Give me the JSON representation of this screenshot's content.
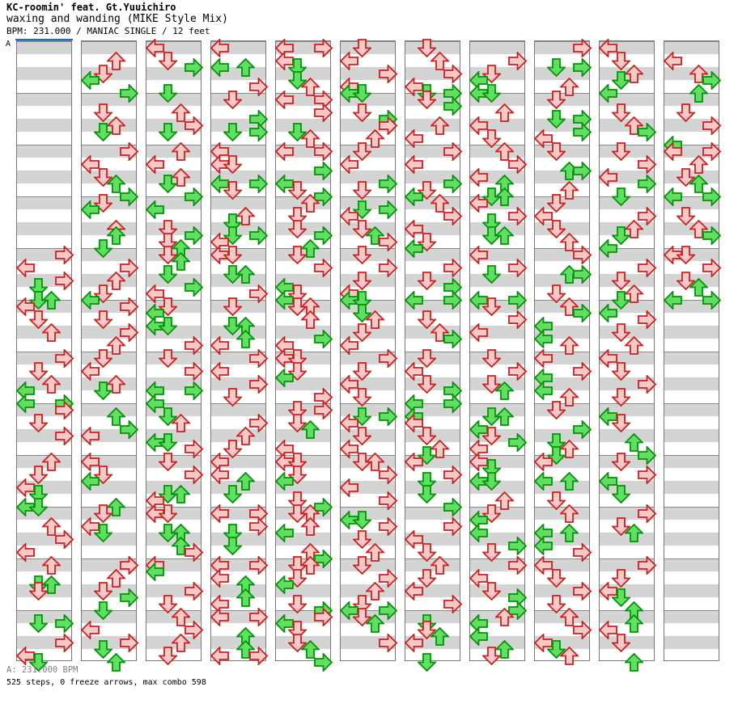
{
  "header": {
    "title": "KC-roomin' feat. Gt.Yuuichiro",
    "subtitle": "waxing and wanding (MIKE Style Mix)",
    "info_line": "BPM: 231.000 / MANIAC SINGLE / 12 feet"
  },
  "bpm_marker": {
    "label": "A"
  },
  "footer": {
    "bpm_line": "A: 231.000 BPM",
    "stats_line": "525 steps, 0 freeze arrows, max combo 598"
  },
  "colors": {
    "stripe_gray": "#d4d4d4",
    "stripe_white": "#ffffff",
    "column_border": "#787878",
    "measure_line": "#8a8a8a",
    "bpm_marker_blue": "#1a6fd2",
    "note_pink_fill": "#f9c8c8",
    "note_pink_stroke": "#cc2020",
    "note_green_fill": "#63dd63",
    "note_green_stroke": "#009408",
    "footer_bpm_text": "#808080",
    "text_black": "#000000"
  },
  "stepchart": {
    "lanes": [
      "left",
      "down",
      "up",
      "right"
    ],
    "note_types": {
      "p": "quarter-note-pink",
      "g": "eighth-note-green"
    },
    "columns_count": 11,
    "measures_per_column": 12,
    "beats_per_measure": 4,
    "columns": [
      "32Rp 34Lp 36Rp 37Dg 39Dg 39Ug 40Lp 42Dp 44Up 48Rp 50Dp 52Up 53Lg 55Lg 55Rg 56Rp 58Dp 60Rp 64Up 66Dp 68Lp 69Dg 71Lg 71Dg 74Up 76Rp 78Lp 80Up 83Dg 83Ug 84Dp 89Dg 89Rg 92Rp 94Lp 95Dg",
      "2Up 4Dp 5Lg 7Rg 10Dp 12Up 13Dg 16Rp 18Lp 20Dp 21Ug 23Rg 24Dp 25Lg 28Up 29Ug 31Dg 34Rp 36Up 38Dp 39Lg 40Rp 42Dp 44Rp 46Up 48Dp 50Lp 52Up 53Dg 57Ug 59Rg 60Lp 64Lp 66Dp 67Lg 71Ug 72Dp 74Lp 75Dg 80Rp 82Up 84Dp 85Rg 87Dg 90Lp 92Rp 93Dg 95Ug",
      "0Lp 2Dp 3Rg 7Dg 10Up 12Rp 13Dg 16Up 18Lp 20Up 21Dg 23Rg 25Lg 28Dp 29Rg 30Dp 31Ug 32Dp 33Ug 35Dg 37Rg 38Lp 40Dp 41Lg 43Lg 43Dg 46Rp 48Dp 50Rp 53Lg 53Rg 55Lg 57Dg 58Up 61Lg 61Dg 62Rp 64Dp 66Rp 69Dg 69Ug 70Lp 72Lp 72Dp 75Dg 75Ug 77Ug 78Rp 80Lp 81Lg 84Rp 86Dp 88Up 90Rp 92Up 94Dp",
      "0Lp 3Lg 3Ug 6Rp 8Dp 11Rg 13Dg 13Rg 16Lp 18Lp 18Dp 21Lg 21Rg 22Dp 26Up 27Dg 29Dg 29Rg 30Lp 32Lp 32Dp 35Dg 35Ug 38Rp 40Dp 43Dg 43Ug 45Ug 46Lp 48Rp 50Lp 52Rp 54Dp 58Rp 60Up 62Dp 64Lp 66Lp 67Ug 69Dg 72Lp 72Rp 74Rp 75Dg 77Dg 80Lp 80Rp 82Lp 83Ug 85Ug 86Lp 88Lp 88Rp 91Ug 93Ug 94Lp 94Rp",
      "0Lp 0Rp 2Lp 3Dg 5Dg 6Up 8Lp 8Rp 10Rp 13Dg 14Up 16Lp 16Rp 19Rg 21Lg 22Dp 23Rg 24Up 26Dp 28Dp 29Rg 31Ug 32Dp 34Rp 37Lg 38Dp 39Lg 40Dp 40Up 42Up 45Rg 46Lp 48Lp 48Dp 50Dp 51Lg 54Rp 56Dp 56Rp 58Dp 59Ug 62Lp 64Lp 64Dp 66Dp 67Lg 70Dp 71Rg 72Dp 72Up 74Up 75Lg 78Up 79Rg 80Dp 80Up 82Dp 83Lg 86Dp 87Rg 88Rp 89Lg 90Dp 92Dp 93Ug 95Rg",
      "0Dp 2Lp 4Rp 6Lp 7Lg 7Dg 10Dp 11Rg 12Rp 14Up 16Dp 18Lp 21Rg 22Dp 25Dg 25Rg 26Lp 28Dp 29Ug 30Rp 32Dp 34Rp 36Dp 38Lp 39Lg 39Dg 41Dg 42Up 44Dp 46Lp 48Rp 50Dp 52Lp 54Dp 57Dg 57Rg 58Lp 60Dp 62Lp 64Dp 64Up 66Rp 68Lp 70Rp 73Lg 73Dg 74Rp 76Dp 78Up 80Dp 82Rp 84Up 86Dp 87Lg 87Rg 88Dp 89Ug 92Rp",
      "0Dp 2Up 4Rp 6Lp 7Dg 7Rg 8Dp 9Rg 12Up 14Lp 16Rp 18Lp 21Rg 22Dp 23Lg 24Up 26Rp 28Lp 30Dp 31Lg 34Rp 36Dp 37Rg 39Lg 39Rg 42Dp 44Up 45Rg 48Dp 50Lp 52Dp 53Rg 55Lg 55Rg 57Lg 58Lp 60Dp 62Up 63Dg 64Lp 66Rp 67Dg 69Dg 71Rg 74Rp 76Lp 78Dp 80Up 82Dp 84Lp 86Rp 89Dg 90Dp 91Ug 92Lp 95Dg",
      "2Rp 4Dp 5Lg 7Lg 7Dg 10Up 12Lp 14Dp 16Up 18Rp 20Lp 21Ug 23Dg 23Ug 24Lp 26Rp 27Dg 29Dg 29Ug 32Lp 34Rp 35Dg 39Lg 39Rg 40Dp 42Rp 44Lp 48Dp 50Rp 52Dp 53Ug 57Ug 57Dg 59Lg 60Dp 61Rg 62Lp 64Lp 65Dg 67Lg 67Dg 70Up 72Dp 73Lg 75Lg 77Rg 78Dp 80Rp 82Lp 84Dp 85Rg 87Rg 88Up 89Lg 91Lg 93Ug 94Dp",
      "0Rp 3Dg 3Rg 6Up 8Dp 11Dg 11Rg 13Rg 14Lp 16Dp 19Ug 19Rg 22Up 24Dp 26Lp 28Dp 30Up 32Rp 35Ug 35Rg 38Dp 40Up 41Rg 43Lg 45Lg 46Up 48Lp 50Rp 51Lg 53Lg 54Up 56Dp 59Rg 61Dg 62Up 63Dg 64Lp 67Lg 67Ug 70Dp 72Up 75Lg 75Ug 77Lg 78Rp 80Lp 82Dp 84Rp 86Dp 88Up 90Rp 92Lp 93Dg 94Up",
      "0Lp 2Dp 4Up 5Dg 7Lg 10Dp 12Up 13Rg 16Dp 18Rp 20Lp 21Rg 23Dg 26Rp 28Up 29Dg 31Lg 34Rp 36Dp 38Up 39Dg 41Lg 42Rp 44Dp 46Up 48Lp 50Dp 52Rp 54Dp 57Lg 58Dp 61Ug 63Rg 64Dp 66Rp 67Lg 69Dg 72Rp 74Dp 75Ug 80Rp 82Dp 84Lp 85Dg 87Ug 89Ug 90Lp 92Dp 95Ug",
      "2Lp 4Up 5Rg 7Ug 10Dp 12Rp 15Lg 16Lp 16Rp 18Up 20Dp 21Ug 23Lg 23Rg 26Dp 28Up 29Rg 32Lp 32Dp 34Rp 36Dp 37Ug 39Lg 39Rg"
    ]
  }
}
